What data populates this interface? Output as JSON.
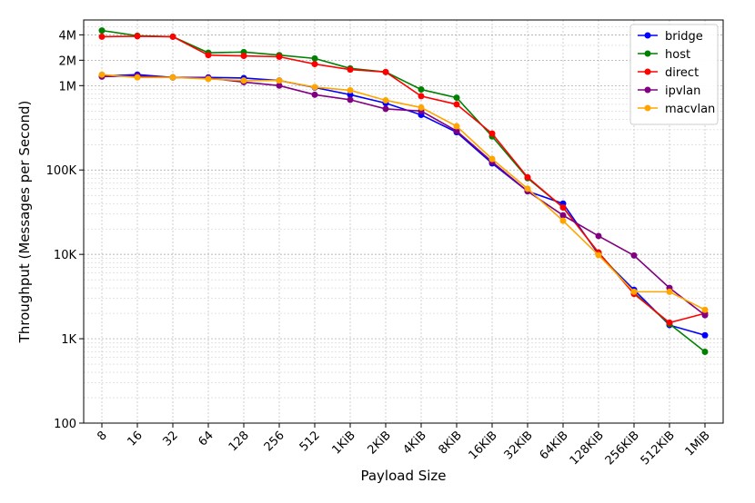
{
  "chart_data": {
    "type": "line",
    "title": "",
    "xlabel": "Payload Size",
    "ylabel": "Throughput (Messages per Second)",
    "yscale": "log",
    "ylim": [
      100,
      6000000
    ],
    "grid": true,
    "legend_position": "top-right",
    "categories": [
      "8",
      "16",
      "32",
      "64",
      "128",
      "256",
      "512",
      "1KiB",
      "2KiB",
      "4KiB",
      "8KiB",
      "16KiB",
      "32KiB",
      "64KiB",
      "128KiB",
      "256KiB",
      "512KiB",
      "1MiB"
    ],
    "y_ticks": [
      {
        "value": 100,
        "label": "100"
      },
      {
        "value": 1000,
        "label": "1K"
      },
      {
        "value": 10000,
        "label": "10K"
      },
      {
        "value": 100000,
        "label": "100K"
      },
      {
        "value": 1000000,
        "label": "1M"
      },
      {
        "value": 2000000,
        "label": "2M"
      },
      {
        "value": 4000000,
        "label": "4M"
      }
    ],
    "series": [
      {
        "name": "bridge",
        "color": "#0000ff",
        "values": [
          1300000,
          1350000,
          1250000,
          1250000,
          1230000,
          1150000,
          950000,
          780000,
          620000,
          450000,
          280000,
          120000,
          56000,
          40000,
          10000,
          3800,
          1450,
          1100
        ]
      },
      {
        "name": "host",
        "color": "#008000",
        "values": [
          4500000,
          3900000,
          3800000,
          2450000,
          2500000,
          2300000,
          2100000,
          1600000,
          1450000,
          900000,
          720000,
          250000,
          80000,
          36000,
          10500,
          3500,
          1500,
          700
        ]
      },
      {
        "name": "direct",
        "color": "#ff0000",
        "values": [
          3800000,
          3850000,
          3800000,
          2300000,
          2250000,
          2200000,
          1800000,
          1550000,
          1450000,
          750000,
          600000,
          270000,
          82000,
          36000,
          10500,
          3400,
          1550,
          2000
        ]
      },
      {
        "name": "ipvlan",
        "color": "#800080",
        "values": [
          1280000,
          1300000,
          1250000,
          1230000,
          1100000,
          1000000,
          780000,
          680000,
          530000,
          500000,
          290000,
          125000,
          56000,
          29000,
          16500,
          9700,
          4000,
          1900
        ]
      },
      {
        "name": "macvlan",
        "color": "#ffa500",
        "values": [
          1350000,
          1250000,
          1250000,
          1200000,
          1150000,
          1150000,
          960000,
          880000,
          670000,
          550000,
          330000,
          135000,
          60000,
          25000,
          9800,
          3600,
          3600,
          2200
        ]
      }
    ]
  }
}
